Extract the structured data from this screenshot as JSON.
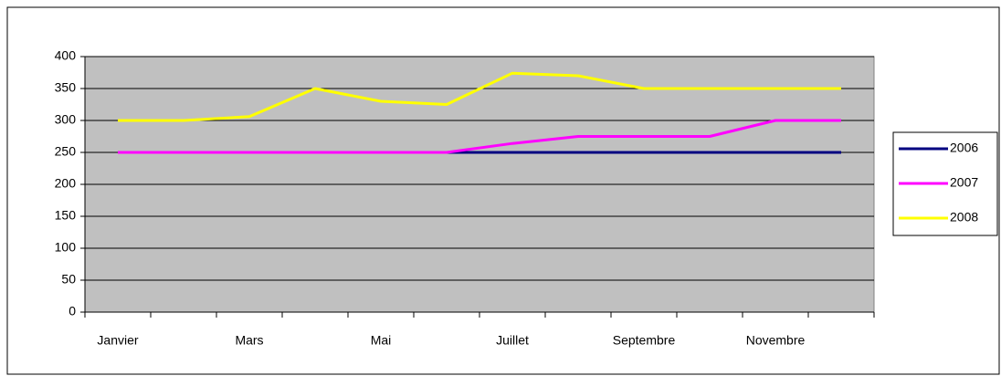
{
  "chart_data": {
    "type": "line",
    "categories": [
      "Janvier",
      null,
      "Mars",
      null,
      "Mai",
      null,
      "Juillet",
      null,
      "Septembre",
      null,
      "Novembre",
      null
    ],
    "series": [
      {
        "name": "2006",
        "color": "#000080",
        "values": [
          250,
          250,
          250,
          250,
          250,
          250,
          250,
          250,
          250,
          250,
          250,
          250
        ]
      },
      {
        "name": "2007",
        "color": "#ff00ff",
        "values": [
          250,
          250,
          250,
          250,
          250,
          250,
          264,
          275,
          275,
          275,
          300,
          300
        ]
      },
      {
        "name": "2008",
        "color": "#ffff00",
        "values": [
          300,
          300,
          306,
          350,
          330,
          325,
          374,
          370,
          350,
          350,
          350,
          350
        ]
      }
    ],
    "ylim": [
      0,
      400
    ],
    "yticks": [
      0,
      50,
      100,
      150,
      200,
      250,
      300,
      350,
      400
    ],
    "grid": true,
    "legend": "right",
    "plot_background": "#c0c0c0"
  }
}
